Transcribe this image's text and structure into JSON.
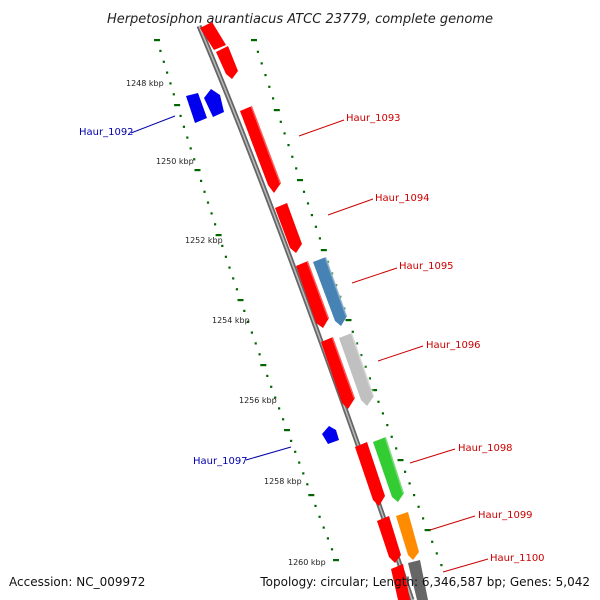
{
  "title": "Herpetosiphon aurantiacus ATCC 23779, complete genome",
  "footer": {
    "accession": "Accession: NC_009972",
    "topology": "Topology: circular; Length: 6,346,587 bp; Genes: 5,042"
  },
  "kbp_labels": [
    "1248 kbp",
    "1250 kbp",
    "1252 kbp",
    "1254 kbp",
    "1256 kbp",
    "1258 kbp",
    "1260 kbp"
  ],
  "gene_labels": [
    {
      "name": "Haur_1092",
      "strand": "reverse"
    },
    {
      "name": "Haur_1093",
      "strand": "forward"
    },
    {
      "name": "Haur_1094",
      "strand": "forward"
    },
    {
      "name": "Haur_1095",
      "strand": "forward"
    },
    {
      "name": "Haur_1096",
      "strand": "forward"
    },
    {
      "name": "Haur_1097",
      "strand": "reverse"
    },
    {
      "name": "Haur_1098",
      "strand": "forward"
    },
    {
      "name": "Haur_1099",
      "strand": "forward"
    },
    {
      "name": "Haur_1100",
      "strand": "forward"
    }
  ],
  "colors": {
    "forward_label": "#cc0000",
    "reverse_label": "#0000aa",
    "forward_gene": "#ff0000",
    "reverse_gene": "#0000ee",
    "backbone": "#888888",
    "ticks": "#006600",
    "cog_blue": "#4682b4",
    "cog_silver": "#c0c0c0",
    "cog_green": "#33cc33",
    "cog_orange": "#ff8c00",
    "cog_gray": "#666666"
  }
}
